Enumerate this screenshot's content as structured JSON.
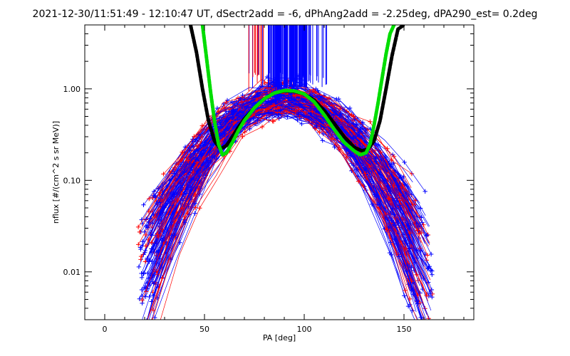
{
  "chart_data": {
    "type": "scatter",
    "title": "2021-12-30/11:51:49 - 12:10:47 UT, dSectr2add = -6, dPhAng2add = -2.25deg, dPA290_est=    0.2deg",
    "xlabel": "PA [deg]",
    "ylabel": "nflux [#/(cm^2 s sr MeV)]",
    "xlim": [
      -10,
      185
    ],
    "ylim": [
      0.003,
      5.0
    ],
    "yscale": "log",
    "xticks": [
      0,
      50,
      100,
      150
    ],
    "xtick_labels": [
      "0",
      "50",
      "100",
      "150"
    ],
    "yticks": [
      0.01,
      0.1,
      1.0
    ],
    "ytick_labels": [
      "0.01",
      "0.10",
      "1.00"
    ],
    "grid": false,
    "legend": "none",
    "colors": {
      "red_series": "#ff0000",
      "blue_series": "#0000ff",
      "black_fit": "#000000",
      "green_fit": "#00dd00"
    },
    "series": [
      {
        "color": "#000000",
        "style": "thick dashed",
        "x": [
          43,
          46,
          49,
          52,
          55,
          58,
          61,
          64,
          67,
          70,
          75,
          80,
          85,
          90,
          95,
          100,
          105,
          110,
          115,
          120,
          125,
          129,
          132,
          135,
          138,
          141,
          144,
          147,
          150
        ],
        "y": [
          5.0,
          2.5,
          1.0,
          0.45,
          0.27,
          0.22,
          0.24,
          0.3,
          0.38,
          0.47,
          0.62,
          0.78,
          0.9,
          0.95,
          0.94,
          0.88,
          0.75,
          0.58,
          0.42,
          0.3,
          0.23,
          0.21,
          0.22,
          0.27,
          0.45,
          1.0,
          2.3,
          4.5,
          5.0
        ]
      },
      {
        "color": "#00dd00",
        "style": "thick dashed",
        "x": [
          49,
          51,
          53,
          55,
          57,
          59,
          61,
          64,
          67,
          70,
          75,
          80,
          85,
          90,
          95,
          100,
          105,
          110,
          115,
          120,
          125,
          128,
          131,
          133,
          135,
          137,
          139,
          141,
          143,
          145
        ],
        "y": [
          5.0,
          2.2,
          0.95,
          0.45,
          0.25,
          0.19,
          0.2,
          0.26,
          0.35,
          0.45,
          0.62,
          0.78,
          0.9,
          0.96,
          0.95,
          0.88,
          0.72,
          0.52,
          0.36,
          0.26,
          0.21,
          0.19,
          0.2,
          0.25,
          0.4,
          0.7,
          1.3,
          2.4,
          4.0,
          5.0
        ]
      }
    ]
  }
}
